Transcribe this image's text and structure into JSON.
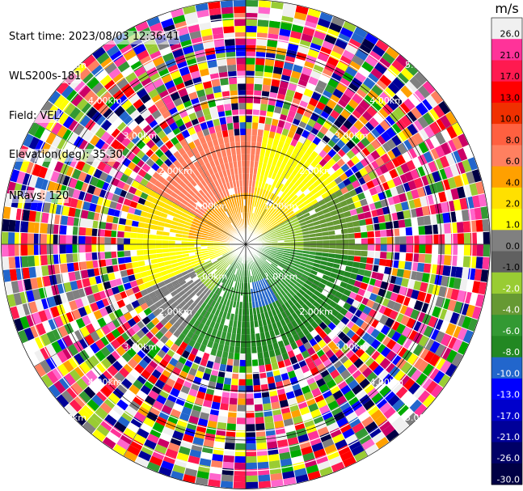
{
  "header": {
    "start_time": "Start time: 2023/08/03 12:36:41",
    "instrument": "WLS200s-181",
    "field": "Field: VEL",
    "elevation": "Elevation(deg): 35.30",
    "nrays": "NRays: 120"
  },
  "chart_data": {
    "type": "heatmap",
    "subtype": "polar-ppi",
    "field": "VEL",
    "unit": "m/s",
    "elevation_deg": 35.3,
    "nrays": 120,
    "range_rings": [
      {
        "label": "1.00km",
        "range_km": 1.0
      },
      {
        "label": "2.00km",
        "range_km": 2.0
      },
      {
        "label": "3.00km",
        "range_km": 3.0
      },
      {
        "label": "4.00km",
        "range_km": 4.0
      },
      {
        "label": "5.00km",
        "range_km": 5.0
      }
    ],
    "max_range_km": 5.8,
    "colorbar": {
      "title": "m/s",
      "ticks": [
        "26.0",
        "21.0",
        "17.0",
        "13.0",
        "10.0",
        "8.0",
        "6.0",
        "4.0",
        "2.0",
        "1.0",
        "0.0",
        "-1.0",
        "-2.0",
        "-4.0",
        "-6.0",
        "-8.0",
        "-10.0",
        "-13.0",
        "-17.0",
        "-21.0",
        "-26.0",
        "-30.0"
      ],
      "bin_colors": [
        "#f0f0f0",
        "#ff3399",
        "#ff1a50",
        "#ff0000",
        "#f03000",
        "#ff6040",
        "#ff8060",
        "#ffa000",
        "#ffe000",
        "#ffff00",
        "#808080",
        "#606060",
        "#99cc33",
        "#669933",
        "#339933",
        "#228822",
        "#2266cc",
        "#0000ff",
        "#0000cc",
        "#000099",
        "#000066",
        "#000044"
      ]
    },
    "pattern_summary": {
      "inner_core_km": 2.5,
      "approaching_sector_deg": [
        90,
        300
      ],
      "receding_sector_deg": [
        300,
        90
      ],
      "outer_noise": "random multicolor clutter beyond about 2.5 km"
    }
  }
}
